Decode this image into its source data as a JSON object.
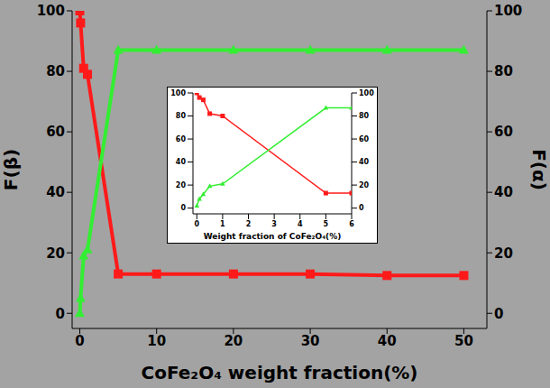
{
  "chart_data": [
    {
      "type": "line",
      "x_label": "CoFe₂O₄ weight fraction(%)",
      "y_label": "F(β)",
      "y2_label": "F(α)",
      "x": [
        0,
        0.1,
        0.5,
        1,
        5,
        10,
        20,
        30,
        40,
        50
      ],
      "xlim": [
        -1,
        53
      ],
      "xticks": [
        0,
        10,
        20,
        30,
        40,
        50
      ],
      "ylim": [
        -5,
        100
      ],
      "yticks": [
        0,
        20,
        40,
        60,
        80,
        100
      ],
      "y2lim": [
        -5,
        100
      ],
      "y2ticks": [
        0,
        20,
        40,
        60,
        80,
        100
      ],
      "series": [
        {
          "name": "F(β)",
          "color": "#ff1a1a",
          "marker": "square",
          "values": [
            100,
            96,
            81,
            79,
            13,
            13,
            13,
            13,
            12.5,
            12.5
          ]
        },
        {
          "name": "F(α)",
          "color": "#33ee33",
          "marker": "triangle",
          "axis": "y2",
          "values": [
            0,
            5,
            19,
            21,
            87,
            87,
            87,
            87,
            87,
            87
          ]
        }
      ]
    },
    {
      "type": "line",
      "x_label": "Weight fraction of CoFe₂O₄(%)",
      "x": [
        0,
        0.1,
        0.25,
        0.5,
        1,
        5,
        6
      ],
      "xlim": [
        -0.15,
        6
      ],
      "xticks": [
        0,
        1,
        2,
        3,
        4,
        5,
        6
      ],
      "ylim": [
        -5,
        100
      ],
      "yticks": [
        0,
        20,
        40,
        60,
        80,
        100
      ],
      "y2lim": [
        -5,
        100
      ],
      "y2ticks": [
        0,
        20,
        40,
        60,
        80,
        100
      ],
      "series": [
        {
          "name": "F(β)",
          "color": "#ff1a1a",
          "marker": "square",
          "values": [
            100,
            96,
            94,
            82,
            80,
            13,
            13
          ]
        },
        {
          "name": "F(α)",
          "color": "#33ee33",
          "marker": "triangle",
          "axis": "y2",
          "values": [
            2,
            8,
            12,
            19,
            21,
            87,
            87
          ]
        }
      ]
    }
  ]
}
